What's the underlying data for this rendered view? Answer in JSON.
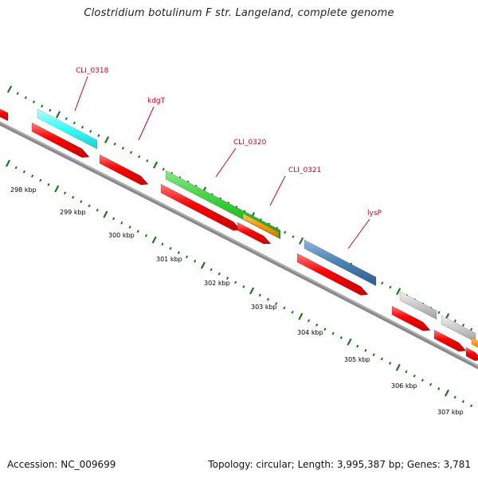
{
  "title": "Clostridium botulinum F str. Langeland, complete genome",
  "footer": {
    "accession": "Accession: NC_009699",
    "topology": "Topology: circular; Length: 3,995,387 bp; Genes: 3,781"
  },
  "ticks": [
    {
      "label": "298 kbp",
      "kbp": 298
    },
    {
      "label": "299 kbp",
      "kbp": 299
    },
    {
      "label": "300 kbp",
      "kbp": 300
    },
    {
      "label": "301 kbp",
      "kbp": 301
    },
    {
      "label": "302 kbp",
      "kbp": 302
    },
    {
      "label": "303 kbp",
      "kbp": 303
    },
    {
      "label": "304 kbp",
      "kbp": 304
    },
    {
      "label": "305 kbp",
      "kbp": 305
    },
    {
      "label": "306 kbp",
      "kbp": 306
    },
    {
      "label": "307 kbp",
      "kbp": 307
    }
  ],
  "gene_labels": [
    "CLI_0318",
    "kdgT",
    "CLI_0320",
    "CLI_0321",
    "lysP"
  ],
  "colors": {
    "backbone": "#7a7a7a",
    "cds": "#ff0000",
    "cyan": "#33ffff",
    "green": "#33cc33",
    "orange": "#ff9900",
    "steelblue": "#4682b4",
    "gray": "#c8c8c8",
    "tick": "#1a7a1a",
    "label": "#d0021b"
  }
}
